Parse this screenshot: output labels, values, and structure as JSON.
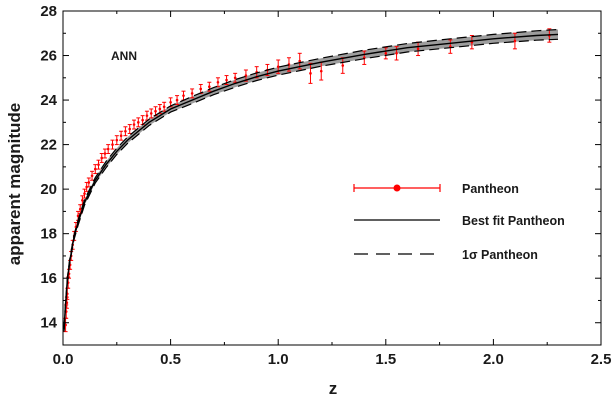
{
  "chart_data": {
    "type": "scatter",
    "title": "",
    "annotation": "ANN",
    "xlabel": "z",
    "ylabel": "apparent magnitude",
    "xlim": [
      0,
      2.5
    ],
    "ylim": [
      13,
      28
    ],
    "xticks": [
      "0.0",
      "0.5",
      "1.0",
      "1.5",
      "2.0",
      "2.5"
    ],
    "yticks": [
      "14",
      "16",
      "18",
      "20",
      "22",
      "24",
      "26",
      "28"
    ],
    "grid": false,
    "legend_position": "center-right",
    "legend": [
      {
        "label": "Pantheon",
        "style": "errorbar-point"
      },
      {
        "label": "Best fit Pantheon",
        "style": "solid-line"
      },
      {
        "label": "1σ Pantheon",
        "style": "dashed-line"
      }
    ],
    "colors": {
      "data": "#ff0000",
      "best_fit": "#000000",
      "band": "#8c8c8c"
    },
    "series": [
      {
        "name": "Pantheon",
        "kind": "points_with_errorbars",
        "x": [
          0.012,
          0.015,
          0.018,
          0.02,
          0.024,
          0.028,
          0.033,
          0.038,
          0.045,
          0.052,
          0.06,
          0.07,
          0.08,
          0.09,
          0.1,
          0.11,
          0.12,
          0.135,
          0.15,
          0.165,
          0.18,
          0.195,
          0.21,
          0.23,
          0.25,
          0.27,
          0.29,
          0.31,
          0.33,
          0.35,
          0.37,
          0.39,
          0.41,
          0.43,
          0.45,
          0.47,
          0.5,
          0.53,
          0.56,
          0.6,
          0.64,
          0.68,
          0.72,
          0.76,
          0.8,
          0.85,
          0.9,
          0.95,
          1.0,
          1.05,
          1.1,
          1.15,
          1.2,
          1.3,
          1.4,
          1.5,
          1.55,
          1.65,
          1.8,
          1.9,
          2.1,
          2.26
        ],
        "y": [
          13.9,
          14.5,
          14.9,
          15.3,
          15.8,
          16.2,
          16.6,
          17.0,
          17.5,
          17.9,
          18.3,
          18.8,
          19.1,
          19.5,
          19.8,
          20.1,
          20.3,
          20.6,
          20.9,
          21.1,
          21.4,
          21.6,
          21.8,
          22.0,
          22.2,
          22.4,
          22.6,
          22.7,
          22.9,
          23.0,
          23.1,
          23.3,
          23.4,
          23.5,
          23.6,
          23.7,
          23.9,
          24.0,
          24.2,
          24.3,
          24.5,
          24.6,
          24.8,
          24.9,
          25.0,
          25.1,
          25.25,
          25.35,
          25.5,
          25.6,
          25.75,
          25.2,
          25.3,
          25.55,
          25.9,
          26.1,
          26.1,
          26.3,
          26.4,
          26.6,
          26.65,
          26.9
        ],
        "yerr": [
          0.3,
          0.3,
          0.25,
          0.25,
          0.25,
          0.2,
          0.2,
          0.2,
          0.2,
          0.2,
          0.2,
          0.2,
          0.2,
          0.2,
          0.2,
          0.2,
          0.2,
          0.2,
          0.2,
          0.2,
          0.2,
          0.2,
          0.2,
          0.2,
          0.2,
          0.2,
          0.2,
          0.2,
          0.2,
          0.2,
          0.2,
          0.2,
          0.2,
          0.2,
          0.2,
          0.2,
          0.2,
          0.2,
          0.2,
          0.2,
          0.2,
          0.2,
          0.2,
          0.2,
          0.2,
          0.25,
          0.25,
          0.25,
          0.3,
          0.3,
          0.35,
          0.45,
          0.4,
          0.35,
          0.3,
          0.25,
          0.3,
          0.3,
          0.3,
          0.3,
          0.35,
          0.3
        ]
      },
      {
        "name": "Best fit Pantheon",
        "kind": "line",
        "x": [
          0.005,
          0.01,
          0.02,
          0.03,
          0.05,
          0.07,
          0.1,
          0.15,
          0.2,
          0.25,
          0.3,
          0.4,
          0.5,
          0.6,
          0.7,
          0.8,
          0.9,
          1.0,
          1.2,
          1.4,
          1.6,
          1.8,
          2.0,
          2.2,
          2.3
        ],
        "y": [
          13.7,
          14.6,
          15.9,
          16.7,
          17.8,
          18.5,
          19.4,
          20.4,
          21.1,
          21.7,
          22.2,
          23.0,
          23.6,
          24.0,
          24.4,
          24.75,
          25.05,
          25.3,
          25.7,
          26.05,
          26.35,
          26.55,
          26.75,
          26.9,
          26.95
        ]
      },
      {
        "name": "1σ Pantheon",
        "kind": "band",
        "x": [
          0.005,
          0.01,
          0.02,
          0.03,
          0.05,
          0.07,
          0.1,
          0.15,
          0.2,
          0.25,
          0.3,
          0.4,
          0.5,
          0.6,
          0.7,
          0.8,
          0.9,
          1.0,
          1.2,
          1.4,
          1.6,
          1.8,
          2.0,
          2.2,
          2.3
        ],
        "upper": [
          13.8,
          14.7,
          16.0,
          16.8,
          17.9,
          18.62,
          19.52,
          20.52,
          21.24,
          21.84,
          22.34,
          23.14,
          23.74,
          24.16,
          24.56,
          24.92,
          25.22,
          25.48,
          25.88,
          26.24,
          26.54,
          26.75,
          26.95,
          27.11,
          27.17
        ],
        "lower": [
          13.6,
          14.5,
          15.8,
          16.6,
          17.7,
          18.38,
          19.28,
          20.28,
          20.96,
          21.56,
          22.06,
          22.86,
          23.46,
          23.84,
          24.24,
          24.58,
          24.88,
          25.12,
          25.52,
          25.86,
          26.16,
          26.35,
          26.55,
          26.69,
          26.73
        ]
      }
    ]
  }
}
